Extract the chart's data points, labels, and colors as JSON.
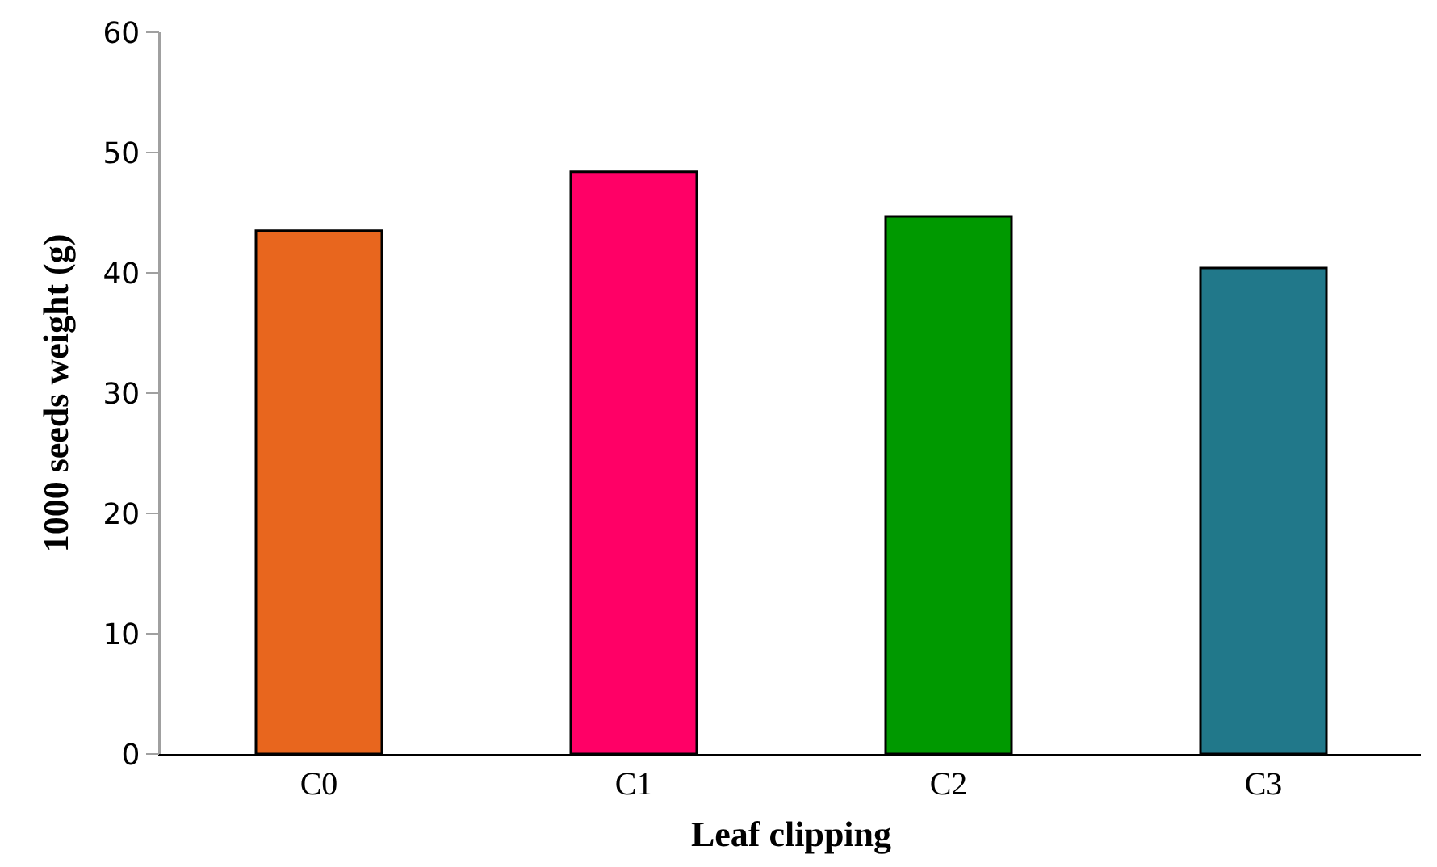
{
  "chart_data": {
    "type": "bar",
    "xlabel": "Leaf clipping",
    "ylabel": "1000 seeds weight (g)",
    "categories": [
      "C0",
      "C1",
      "C2",
      "C3"
    ],
    "values": [
      43.5,
      48.4,
      44.7,
      40.4
    ],
    "colors": [
      "#e8661e",
      "#ff0066",
      "#009900",
      "#21788a"
    ],
    "ylim": [
      0,
      60
    ],
    "yticks": [
      0,
      10,
      20,
      30,
      40,
      50,
      60
    ]
  }
}
